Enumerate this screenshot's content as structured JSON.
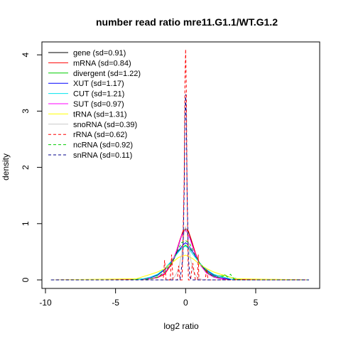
{
  "chart_data": {
    "type": "line",
    "title": "number read ratio mre11.G1.1/WT.G1.2",
    "xlabel": "log2 ratio",
    "ylabel": "density",
    "xlim": [
      -10,
      9
    ],
    "ylim": [
      0,
      4.2
    ],
    "x_ticks": [
      "-10",
      "-5",
      "0",
      "5"
    ],
    "x_tick_values": [
      -10,
      -5,
      0,
      5
    ],
    "y_ticks": [
      "0",
      "1",
      "2",
      "3",
      "4"
    ],
    "y_tick_values": [
      0,
      1,
      2,
      3,
      4
    ],
    "grid": false,
    "legend_position": "top-left",
    "series": [
      {
        "name": "gene (sd=0.91)",
        "color": "#000000",
        "dash": false,
        "x": [
          -3.0,
          -2.5,
          -2.0,
          -1.5,
          -1.0,
          -0.7,
          -0.4,
          -0.2,
          0.0,
          0.2,
          0.4,
          0.7,
          1.0,
          1.5,
          2.0,
          2.5,
          3.0
        ],
        "y": [
          0.01,
          0.02,
          0.05,
          0.12,
          0.28,
          0.45,
          0.7,
          0.85,
          0.9,
          0.86,
          0.7,
          0.46,
          0.29,
          0.14,
          0.06,
          0.02,
          0.01
        ]
      },
      {
        "name": "mRNA (sd=0.84)",
        "color": "#ff0000",
        "dash": false,
        "x": [
          -3.0,
          -2.5,
          -2.0,
          -1.5,
          -1.0,
          -0.7,
          -0.4,
          -0.2,
          0.0,
          0.2,
          0.4,
          0.7,
          1.0,
          1.5,
          2.0,
          2.5,
          3.0
        ],
        "y": [
          0.01,
          0.02,
          0.04,
          0.1,
          0.28,
          0.48,
          0.72,
          0.86,
          0.92,
          0.87,
          0.72,
          0.48,
          0.29,
          0.12,
          0.05,
          0.02,
          0.01
        ]
      },
      {
        "name": "divergent (sd=1.22)",
        "color": "#00cd00",
        "dash": false,
        "x": [
          -4.0,
          -3.0,
          -2.5,
          -2.0,
          -1.5,
          -1.0,
          -0.5,
          0.0,
          0.5,
          1.0,
          1.5,
          2.0,
          2.5,
          2.8,
          3.0,
          3.3,
          4.0
        ],
        "y": [
          0.0,
          0.02,
          0.04,
          0.08,
          0.18,
          0.32,
          0.52,
          0.62,
          0.5,
          0.3,
          0.16,
          0.09,
          0.07,
          0.09,
          0.06,
          0.04,
          0.0
        ]
      },
      {
        "name": "XUT (sd=1.17)",
        "color": "#0000ff",
        "dash": false,
        "x": [
          -3.5,
          -3.0,
          -2.5,
          -2.0,
          -1.5,
          -1.0,
          -0.5,
          -0.2,
          0.0,
          0.2,
          0.5,
          1.0,
          1.5,
          2.0,
          2.5,
          3.0,
          3.5
        ],
        "y": [
          0.0,
          0.02,
          0.04,
          0.09,
          0.18,
          0.32,
          0.52,
          0.62,
          0.66,
          0.62,
          0.5,
          0.3,
          0.17,
          0.08,
          0.04,
          0.02,
          0.0
        ]
      },
      {
        "name": "CUT (sd=1.21)",
        "color": "#00e5ee",
        "dash": false,
        "x": [
          -3.5,
          -3.0,
          -2.5,
          -2.0,
          -1.5,
          -1.0,
          -0.5,
          -0.2,
          0.0,
          0.2,
          0.5,
          1.0,
          1.5,
          2.0,
          2.5,
          3.0,
          3.5
        ],
        "y": [
          0.0,
          0.02,
          0.05,
          0.1,
          0.2,
          0.34,
          0.5,
          0.58,
          0.6,
          0.56,
          0.46,
          0.3,
          0.18,
          0.1,
          0.06,
          0.03,
          0.0
        ]
      },
      {
        "name": "SUT (sd=0.97)",
        "color": "#ff00ff",
        "dash": false,
        "x": [
          -3.0,
          -2.5,
          -2.0,
          -1.5,
          -1.0,
          -0.6,
          -0.3,
          -0.1,
          0.0,
          0.1,
          0.3,
          0.6,
          1.0,
          1.5,
          2.0,
          2.5,
          3.0
        ],
        "y": [
          0.0,
          0.02,
          0.05,
          0.12,
          0.3,
          0.55,
          0.78,
          0.86,
          0.88,
          0.84,
          0.74,
          0.52,
          0.28,
          0.12,
          0.05,
          0.02,
          0.0
        ]
      },
      {
        "name": "tRNA (sd=1.31)",
        "color": "#ffff00",
        "dash": false,
        "x": [
          -3.5,
          -3.0,
          -2.5,
          -2.0,
          -1.5,
          -1.0,
          -0.5,
          0.0,
          0.5,
          1.0,
          1.5,
          2.0,
          2.5,
          3.0,
          3.5
        ],
        "y": [
          0.02,
          0.06,
          0.1,
          0.14,
          0.2,
          0.3,
          0.4,
          0.44,
          0.38,
          0.28,
          0.2,
          0.14,
          0.1,
          0.06,
          0.02
        ]
      },
      {
        "name": "snoRNA (sd=0.39)",
        "color": "#c8c8c8",
        "dash": false,
        "x": [
          -1.2,
          -0.8,
          -0.5,
          -0.3,
          -0.1,
          0.0,
          0.1,
          0.3,
          0.5,
          0.8,
          1.2
        ],
        "y": [
          0.0,
          0.05,
          0.18,
          0.45,
          0.85,
          0.95,
          0.85,
          0.45,
          0.18,
          0.05,
          0.0
        ]
      },
      {
        "name": "rRNA (sd=0.62)",
        "color": "#ff0000",
        "dash": true,
        "x": [
          -2.0,
          -1.6,
          -1.5,
          -1.4,
          -1.1,
          -1.0,
          -0.9,
          -0.6,
          -0.5,
          -0.4,
          -0.25,
          -0.1,
          -0.05,
          0.0,
          0.05,
          0.1,
          0.2,
          0.35,
          0.5,
          0.7,
          0.85,
          0.9,
          0.95,
          1.2,
          1.4,
          1.5,
          1.6,
          2.0
        ],
        "y": [
          0.0,
          0.0,
          0.35,
          0.0,
          0.0,
          0.45,
          0.0,
          0.0,
          0.25,
          0.0,
          0.0,
          1.8,
          3.5,
          4.1,
          3.4,
          1.6,
          0.0,
          0.0,
          0.3,
          0.0,
          0.0,
          0.45,
          0.0,
          0.0,
          0.0,
          0.2,
          0.0,
          0.0
        ]
      },
      {
        "name": "ncRNA (sd=0.92)",
        "color": "#00cd00",
        "dash": true,
        "x": [
          -3.0,
          -2.5,
          -2.0,
          -1.5,
          -1.0,
          -0.6,
          -0.3,
          0.0,
          0.3,
          0.6,
          1.0,
          1.5,
          2.0,
          2.5,
          2.8,
          3.0,
          3.2,
          3.5
        ],
        "y": [
          0.0,
          0.02,
          0.05,
          0.14,
          0.3,
          0.5,
          0.66,
          0.7,
          0.64,
          0.48,
          0.3,
          0.14,
          0.06,
          0.04,
          0.08,
          0.05,
          0.1,
          0.0
        ]
      },
      {
        "name": "snRNA (sd=0.11)",
        "color": "#00008b",
        "dash": true,
        "x": [
          -0.4,
          -0.2,
          -0.1,
          -0.05,
          0.0,
          0.05,
          0.1,
          0.2,
          0.3,
          0.4
        ],
        "y": [
          0.0,
          0.4,
          1.6,
          2.8,
          3.3,
          2.8,
          1.6,
          0.4,
          0.05,
          0.0
        ]
      }
    ]
  }
}
